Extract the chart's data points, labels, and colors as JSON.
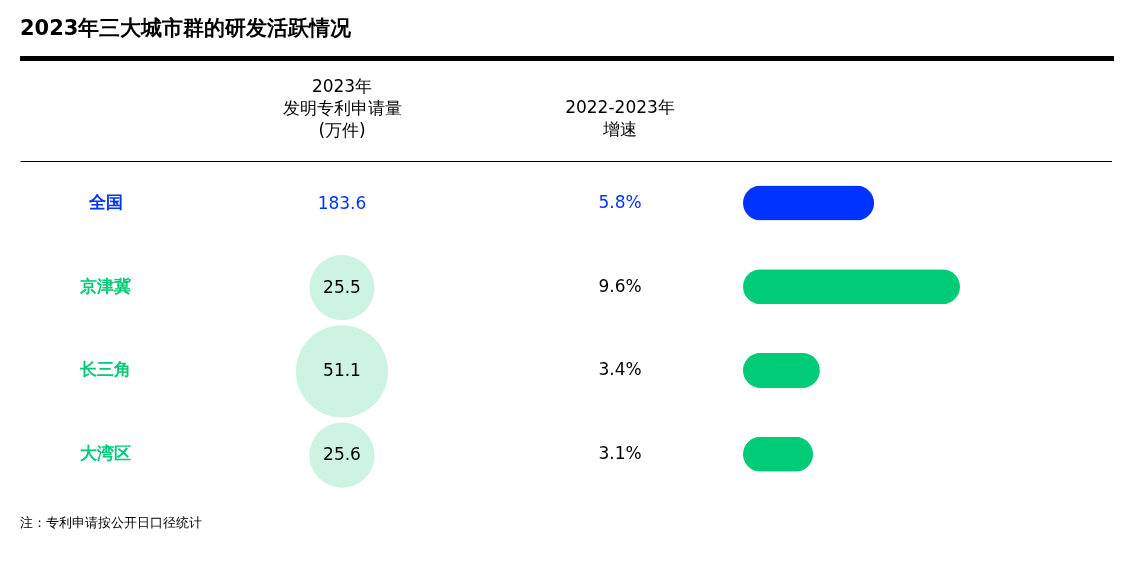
{
  "chart_data": [
    {
      "type": "other",
      "title": "2023年三大城市群的研发活跃情况",
      "xlabel": "2023年发明专利申请量(万件)",
      "values": [
        null,
        25.5,
        51.1,
        25.6
      ],
      "value_labels": [
        "183.6",
        "25.5",
        "51.1",
        "25.6"
      ],
      "color": "#cdf3e3"
    },
    {
      "type": "bar",
      "orientation": "horizontal",
      "xlabel": "2022-2023年增速",
      "categories": [
        "全国",
        "京津冀",
        "长三角",
        "大湾区"
      ],
      "values": [
        5.8,
        9.6,
        3.4,
        3.1
      ],
      "value_labels": [
        "5.8%",
        "9.6%",
        "3.4%",
        "3.1%"
      ],
      "colors": [
        "#0033ff",
        "#00cc77",
        "#00cc77",
        "#00cc77"
      ],
      "annotations": [
        "注：专利申请按公开日口径统计"
      ]
    }
  ]
}
